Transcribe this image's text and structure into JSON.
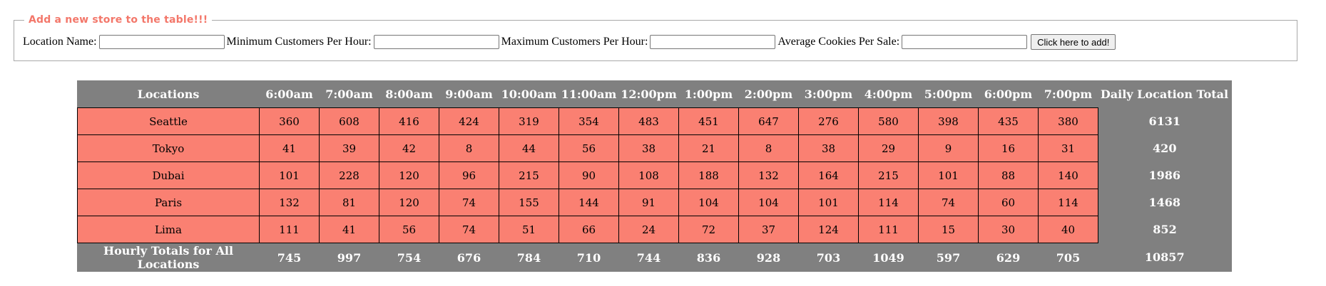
{
  "form": {
    "legend": "Add a new store to the table!!!",
    "location_label": "Location Name:",
    "min_label": "Minimum Customers Per Hour:",
    "max_label": "Maximum Customers Per Hour:",
    "avg_label": "Average Cookies Per Sale:",
    "location_value": "",
    "min_value": "",
    "max_value": "",
    "avg_value": "",
    "submit_label": "Click here to add!"
  },
  "table": {
    "header": {
      "locations": "Locations",
      "hours": [
        "6:00am",
        "7:00am",
        "8:00am",
        "9:00am",
        "10:00am",
        "11:00am",
        "12:00pm",
        "1:00pm",
        "2:00pm",
        "3:00pm",
        "4:00pm",
        "5:00pm",
        "6:00pm",
        "7:00pm"
      ],
      "daily_total": "Daily Location Total"
    },
    "rows": [
      {
        "name": "Seattle",
        "values": [
          "360",
          "608",
          "416",
          "424",
          "319",
          "354",
          "483",
          "451",
          "647",
          "276",
          "580",
          "398",
          "435",
          "380"
        ],
        "total": "6131"
      },
      {
        "name": "Tokyo",
        "values": [
          "41",
          "39",
          "42",
          "8",
          "44",
          "56",
          "38",
          "21",
          "8",
          "38",
          "29",
          "9",
          "16",
          "31"
        ],
        "total": "420"
      },
      {
        "name": "Dubai",
        "values": [
          "101",
          "228",
          "120",
          "96",
          "215",
          "90",
          "108",
          "188",
          "132",
          "164",
          "215",
          "101",
          "88",
          "140"
        ],
        "total": "1986"
      },
      {
        "name": "Paris",
        "values": [
          "132",
          "81",
          "120",
          "74",
          "155",
          "144",
          "91",
          "104",
          "104",
          "101",
          "114",
          "74",
          "60",
          "114"
        ],
        "total": "1468"
      },
      {
        "name": "Lima",
        "values": [
          "111",
          "41",
          "56",
          "74",
          "51",
          "66",
          "24",
          "72",
          "37",
          "124",
          "111",
          "15",
          "30",
          "40"
        ],
        "total": "852"
      }
    ],
    "footer": {
      "label": "Hourly Totals for All Locations",
      "values": [
        "745",
        "997",
        "754",
        "676",
        "784",
        "710",
        "744",
        "836",
        "928",
        "703",
        "1049",
        "597",
        "629",
        "705"
      ],
      "grand_total": "10857"
    }
  },
  "colors": {
    "legend": "#f3776a",
    "cell_background": "#fa8072",
    "header_background": "#808080",
    "header_text": "#ffffff"
  }
}
